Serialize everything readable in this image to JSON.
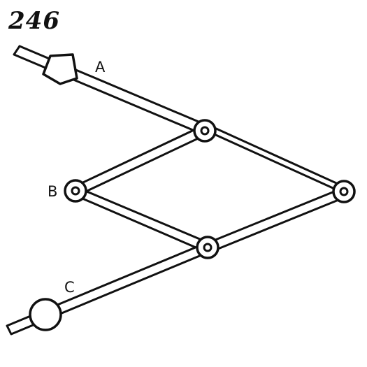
{
  "figure": {
    "number": "246"
  },
  "labels": {
    "a": "A",
    "b": "B",
    "c": "C"
  },
  "colors": {
    "ink": "#111111",
    "paper": "#ffffff"
  }
}
